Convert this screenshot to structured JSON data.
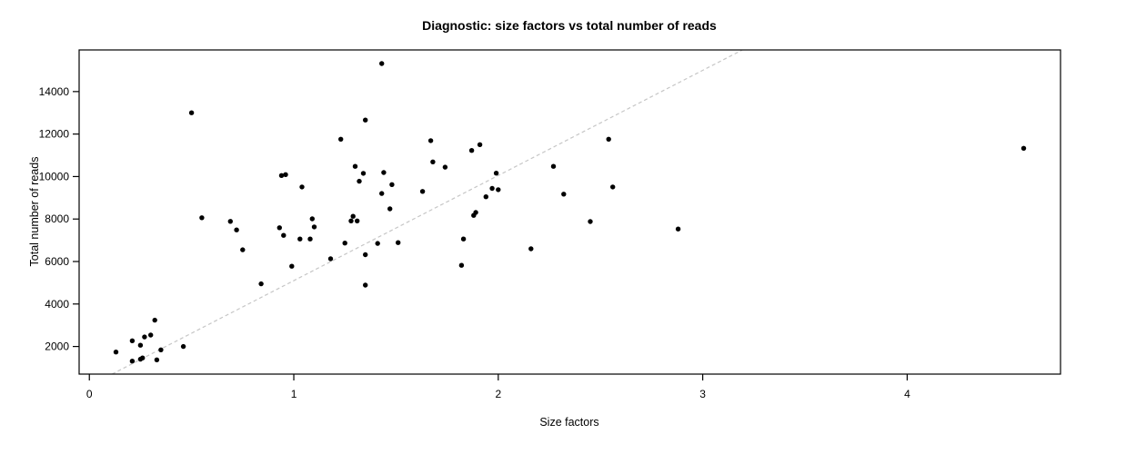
{
  "figure": {
    "background": "#ffffff"
  },
  "chart_data": {
    "type": "scatter",
    "title": "Diagnostic: size factors vs total number of reads",
    "xlabel": "Size factors",
    "ylabel": "Total number of reads",
    "xlim": [
      -0.05,
      4.75
    ],
    "ylim": [
      700,
      15960
    ],
    "x_ticks": [
      0,
      1,
      2,
      3,
      4
    ],
    "y_ticks": [
      2000,
      4000,
      6000,
      8000,
      10000,
      12000,
      14000
    ],
    "grid": false,
    "legend": "none",
    "point_color": "#000000",
    "point_radius": 2.7,
    "reference_line": {
      "type": "abline",
      "slope": 4950,
      "intercept": 150,
      "style": "dashed",
      "color": "#c6c6c6"
    },
    "points": [
      [
        0.13,
        1740
      ],
      [
        0.21,
        2270
      ],
      [
        0.25,
        2060
      ],
      [
        0.27,
        2450
      ],
      [
        0.3,
        2540
      ],
      [
        0.32,
        3240
      ],
      [
        0.35,
        1840
      ],
      [
        0.46,
        2000
      ],
      [
        0.21,
        1310
      ],
      [
        0.25,
        1400
      ],
      [
        0.26,
        1460
      ],
      [
        0.33,
        1370
      ],
      [
        0.5,
        13000
      ],
      [
        0.55,
        8060
      ],
      [
        0.69,
        7890
      ],
      [
        0.72,
        7490
      ],
      [
        0.75,
        6550
      ],
      [
        0.84,
        4950
      ],
      [
        0.94,
        10050
      ],
      [
        0.96,
        10090
      ],
      [
        0.93,
        7590
      ],
      [
        0.95,
        7230
      ],
      [
        0.99,
        5780
      ],
      [
        1.03,
        7060
      ],
      [
        1.04,
        9510
      ],
      [
        1.08,
        7060
      ],
      [
        1.09,
        8010
      ],
      [
        1.1,
        7630
      ],
      [
        1.18,
        6130
      ],
      [
        1.23,
        11760
      ],
      [
        1.25,
        6870
      ],
      [
        1.28,
        7910
      ],
      [
        1.29,
        8130
      ],
      [
        1.31,
        7910
      ],
      [
        1.3,
        10480
      ],
      [
        1.32,
        9780
      ],
      [
        1.34,
        10150
      ],
      [
        1.35,
        12660
      ],
      [
        1.35,
        6320
      ],
      [
        1.35,
        4890
      ],
      [
        1.41,
        6850
      ],
      [
        1.43,
        15320
      ],
      [
        1.43,
        9200
      ],
      [
        1.44,
        10190
      ],
      [
        1.47,
        8480
      ],
      [
        1.48,
        9620
      ],
      [
        1.51,
        6890
      ],
      [
        1.63,
        9300
      ],
      [
        1.67,
        11690
      ],
      [
        1.68,
        10690
      ],
      [
        1.74,
        10440
      ],
      [
        1.82,
        5820
      ],
      [
        1.83,
        7060
      ],
      [
        1.87,
        11230
      ],
      [
        1.88,
        8170
      ],
      [
        1.89,
        8310
      ],
      [
        1.91,
        11500
      ],
      [
        1.94,
        9050
      ],
      [
        1.97,
        9440
      ],
      [
        2.0,
        9380
      ],
      [
        1.99,
        10160
      ],
      [
        2.16,
        6600
      ],
      [
        2.27,
        10480
      ],
      [
        2.32,
        9170
      ],
      [
        2.45,
        7880
      ],
      [
        2.54,
        11760
      ],
      [
        2.56,
        9510
      ],
      [
        2.88,
        7530
      ],
      [
        4.57,
        11330
      ]
    ]
  }
}
